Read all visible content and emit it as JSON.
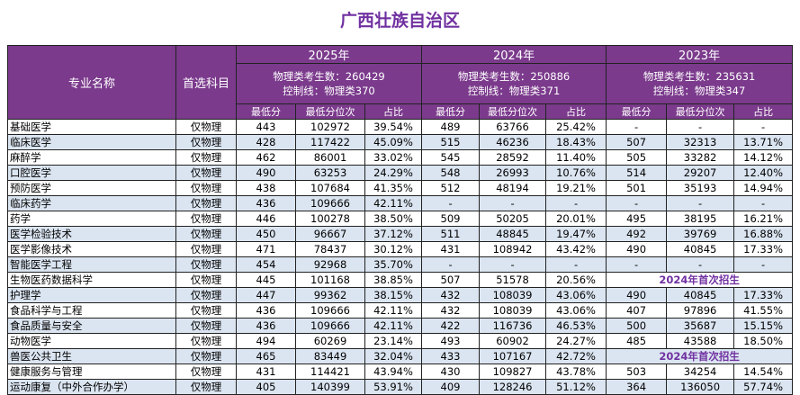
{
  "header": {
    "title": "广西壮族自治区"
  },
  "columns": [
    "专业名称",
    "首选科目"
  ],
  "years": [
    {
      "year": "2025年",
      "info": [
        "物理类考生数：260429",
        "控制线：物理类370"
      ]
    },
    {
      "year": "2024年",
      "info": [
        "物理类考生数：250886",
        "控制线：物理类371"
      ]
    },
    {
      "year": "2023年",
      "info": [
        "物理类考生数：235631",
        "控制线：物理类347"
      ]
    }
  ],
  "sub_headers": [
    "最低分",
    "最低分位次",
    "占比"
  ],
  "table": {
    "rows": [
      [
        "基础医学",
        "仅物理",
        "443",
        "102972",
        "39.54%",
        "489",
        "63766",
        "25.42%",
        "-",
        "-",
        "-"
      ],
      [
        "临床医学",
        "仅物理",
        "428",
        "117422",
        "45.09%",
        "515",
        "46236",
        "18.43%",
        "507",
        "32313",
        "13.71%"
      ],
      [
        "麻醉学",
        "仅物理",
        "462",
        "86001",
        "33.02%",
        "545",
        "28592",
        "11.40%",
        "505",
        "33282",
        "14.12%"
      ],
      [
        "口腔医学",
        "仅物理",
        "490",
        "63253",
        "24.29%",
        "548",
        "26993",
        "10.76%",
        "514",
        "29207",
        "12.40%"
      ],
      [
        "预防医学",
        "仅物理",
        "438",
        "107684",
        "41.35%",
        "512",
        "48194",
        "19.21%",
        "501",
        "35193",
        "14.94%"
      ],
      [
        "临床药学",
        "仅物理",
        "436",
        "109666",
        "42.11%",
        "-",
        "-",
        "-",
        "-",
        "-",
        "-"
      ],
      [
        "药学",
        "仅物理",
        "446",
        "100278",
        "38.50%",
        "509",
        "50205",
        "20.01%",
        "495",
        "38195",
        "16.21%"
      ],
      [
        "医学检验技术",
        "仅物理",
        "450",
        "96667",
        "37.12%",
        "511",
        "48845",
        "19.47%",
        "492",
        "39769",
        "16.88%"
      ],
      [
        "医学影像技术",
        "仅物理",
        "471",
        "78437",
        "30.12%",
        "431",
        "108942",
        "43.42%",
        "490",
        "40845",
        "17.33%"
      ],
      [
        "智能医学工程",
        "仅物理",
        "454",
        "92968",
        "35.70%",
        "-",
        "-",
        "-",
        "-",
        "-",
        "-"
      ],
      [
        "生物医药数据科学",
        "仅物理",
        "445",
        "101168",
        "38.85%",
        "507",
        "51578",
        "20.56%",
        "2024年首次招生"
      ],
      [
        "护理学",
        "仅物理",
        "447",
        "99362",
        "38.15%",
        "432",
        "108039",
        "43.06%",
        "490",
        "40845",
        "17.33%"
      ],
      [
        "食品科学与工程",
        "仅物理",
        "436",
        "109666",
        "42.11%",
        "432",
        "108039",
        "43.06%",
        "407",
        "97896",
        "41.55%"
      ],
      [
        "食品质量与安全",
        "仅物理",
        "436",
        "109666",
        "42.11%",
        "422",
        "116736",
        "46.53%",
        "500",
        "35687",
        "15.15%"
      ],
      [
        "动物医学",
        "仅物理",
        "494",
        "60269",
        "23.14%",
        "493",
        "60902",
        "24.27%",
        "485",
        "43588",
        "18.50%"
      ],
      [
        "兽医公共卫生",
        "仅物理",
        "465",
        "83449",
        "32.04%",
        "433",
        "107167",
        "42.72%",
        "2024年首次招生"
      ],
      [
        "健康服务与管理",
        "仅物理",
        "431",
        "114421",
        "43.94%",
        "430",
        "109827",
        "43.78%",
        "503",
        "34254",
        "14.54%"
      ],
      [
        "运动康复（中外合作办学）",
        "仅物理",
        "405",
        "140399",
        "53.91%",
        "409",
        "128246",
        "51.12%",
        "364",
        "136050",
        "57.74%"
      ]
    ]
  }
}
